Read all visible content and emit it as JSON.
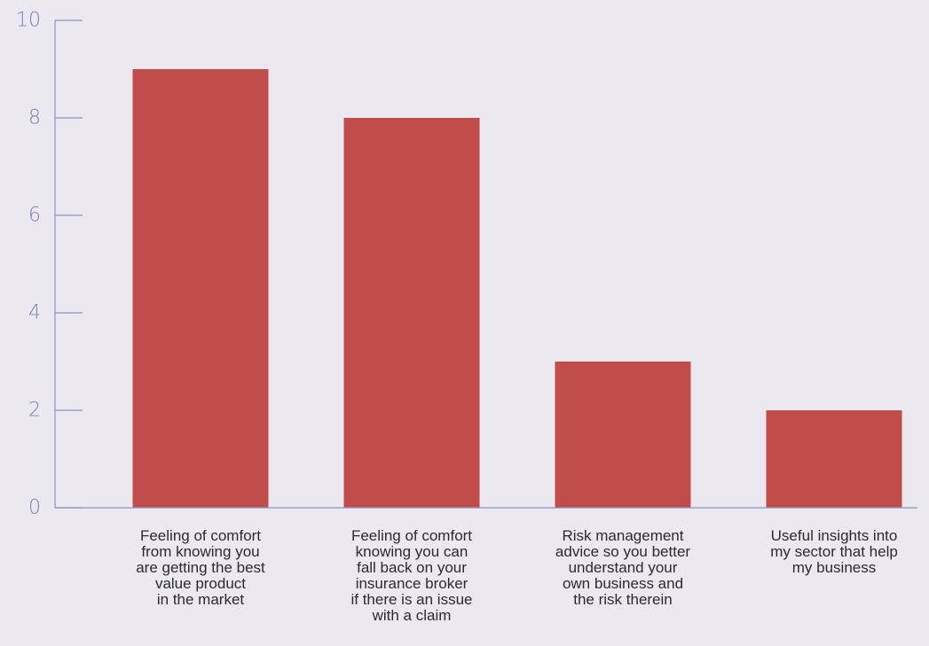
{
  "colors": {
    "background": "#ebe8f0",
    "bar": "#c04c4b",
    "axis": "#8d91c6",
    "tick_label": "#7b7fc2",
    "category_label": "#2b2b2b"
  },
  "chart_data": {
    "type": "bar",
    "title": "",
    "xlabel": "",
    "ylabel": "",
    "ylim": [
      0,
      10
    ],
    "yticks": [
      0,
      2,
      4,
      6,
      8,
      10
    ],
    "grid": false,
    "categories": [
      [
        "Feeling of comfort",
        "from knowing you",
        "are getting the best",
        "value product",
        "in the market"
      ],
      [
        "Feeling of comfort",
        "knowing you can",
        "fall back on your",
        "insurance broker",
        "if there is an issue",
        "with a claim"
      ],
      [
        "Risk management",
        "advice so you better",
        "understand your",
        "own business and",
        "the risk therein"
      ],
      [
        "Useful insights into",
        "my sector that help",
        "my business"
      ]
    ],
    "values": [
      9,
      8,
      3,
      2
    ]
  }
}
